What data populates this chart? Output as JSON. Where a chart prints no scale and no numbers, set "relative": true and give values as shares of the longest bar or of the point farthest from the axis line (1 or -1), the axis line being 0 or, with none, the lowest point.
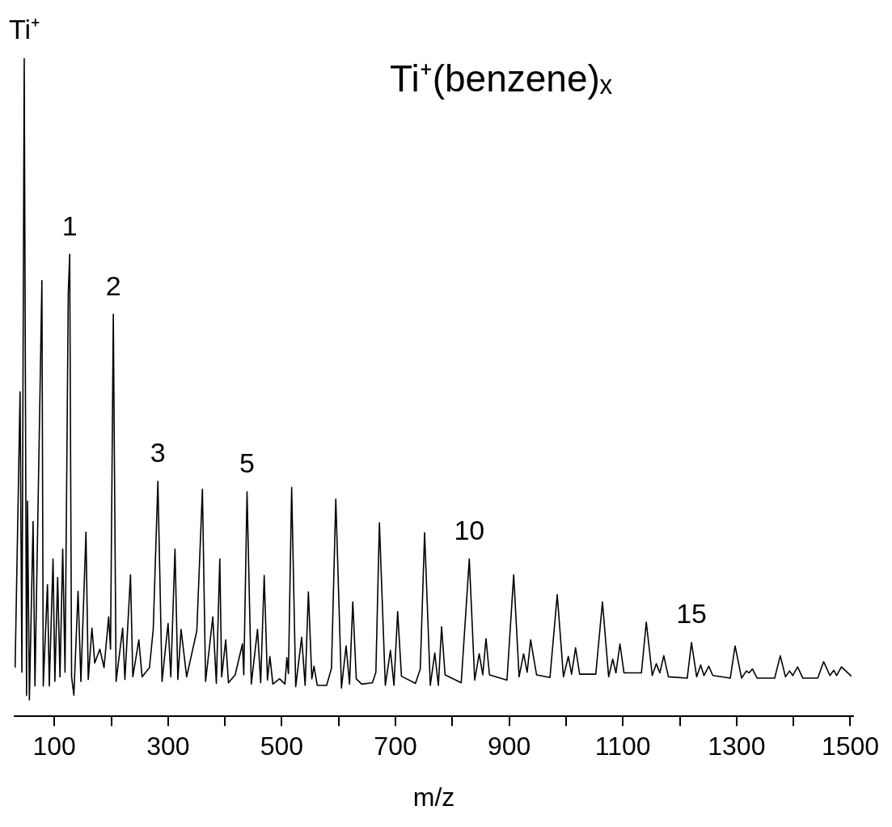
{
  "chart_data": {
    "type": "line",
    "title": "Ti⁺(benzene)ₓ",
    "xlabel": "m/z",
    "relative": true,
    "grid": false,
    "legend": false,
    "tick_labels": "x",
    "marker": "none",
    "line_style": "solid",
    "xlim": [
      30,
      1505
    ],
    "xticks": [
      100,
      {
        "value": 200,
        "label": null
      },
      300,
      {
        "value": 400,
        "label": null
      },
      500,
      {
        "value": 600,
        "label": null
      },
      700,
      {
        "value": 800,
        "label": null
      },
      900,
      {
        "value": 1000,
        "label": null
      },
      1100,
      {
        "value": 1200,
        "label": null
      },
      1300,
      {
        "value": 1400,
        "label": null
      },
      1500
    ],
    "annotations": [
      {
        "text": "Ti⁺",
        "x": 47,
        "y": 1
      },
      {
        "text": "1",
        "x": 127,
        "y": 0.702
      },
      {
        "text": "2",
        "x": 203.7,
        "y": 0.611
      },
      {
        "text": "3",
        "x": 282.1,
        "y": 0.357
      },
      {
        "text": "5",
        "x": 438.9,
        "y": 0.341
      },
      {
        "text": "10",
        "x": 829.8,
        "y": 0.239
      },
      {
        "text": "15",
        "x": 1220.6,
        "y": 0.112
      }
    ],
    "series": [
      {
        "color": "#000000",
        "x": [
          31,
          39.7,
          42.9,
          47.0,
          51.1,
          52.8,
          56.1,
          62.6,
          65.9,
          78.1,
          80.5,
          87.9,
          91.1,
          97.7,
          100.9,
          105.8,
          109.9,
          114.7,
          118.8,
          124.5,
          127.0,
          130.3,
          134.3,
          141.7,
          146.7,
          155.6,
          159.6,
          166.1,
          171.1,
          180.0,
          187.4,
          195.5,
          198.8,
          203.7,
          208.6,
          220.1,
          224.1,
          233.9,
          238.0,
          248.6,
          254.3,
          267.3,
          273.9,
          282.1,
          289.4,
          300.0,
          304.8,
          312.2,
          317.2,
          322.9,
          332.7,
          350.6,
          360.4,
          366.0,
          378.7,
          384.9,
          391.0,
          394.3,
          401.4,
          406.2,
          418.0,
          430.8,
          433.2,
          438.9,
          446.4,
          457.3,
          462.9,
          469.1,
          474.8,
          479.1,
          484.3,
          496.1,
          505.6,
          508.9,
          511.7,
          517.4,
          524.5,
          534.9,
          541.1,
          546.8,
          552.9,
          556.7,
          562.4,
          578.9,
          587.4,
          595.0,
          605.0,
          613.1,
          619.2,
          624.9,
          631.0,
          640.5,
          659.4,
          665.5,
          671.7,
          682.1,
          691.1,
          697.3,
          703.8,
          710.5,
          735.1,
          743.6,
          751.2,
          761.2,
          769.1,
          775.4,
          781.1,
          787.2,
          815.6,
          829.8,
          839.3,
          847.2,
          853.5,
          859.2,
          865.3,
          896.1,
          907.9,
          917.4,
          925.3,
          931.6,
          937.7,
          948.1,
          971.7,
          984.5,
          995.4,
          1004,
          1009.7,
          1016.7,
          1023.9,
          1052.3,
          1064,
          1074.9,
          1082.1,
          1087.7,
          1094.8,
          1101.9,
          1132.6,
          1141.1,
          1151.6,
          1158.7,
          1164.9,
          1171.9,
          1180.0,
          1213.1,
          1220.6,
          1229.7,
          1236.8,
          1242.5,
          1251,
          1258.1,
          1288.8,
          1297.3,
          1308.7,
          1317.2,
          1322.0,
          1327.7,
          1336.2,
          1366.9,
          1376.8,
          1385.9,
          1393,
          1398.7,
          1407.2,
          1416.6,
          1442.7,
          1453,
          1464.0,
          1471,
          1475.8,
          1484.3,
          1501.8
        ],
        "values": [
          0.074,
          0.493,
          0.067,
          1,
          0.032,
          0.327,
          0.025,
          0.296,
          0.046,
          0.662,
          0.046,
          0.2,
          0.046,
          0.239,
          0.053,
          0.211,
          0.06,
          0.254,
          0.067,
          0.644,
          0.702,
          0.06,
          0.032,
          0.19,
          0.053,
          0.28,
          0.056,
          0.134,
          0.081,
          0.102,
          0.074,
          0.151,
          0.102,
          0.611,
          0.053,
          0.134,
          0.056,
          0.215,
          0.06,
          0.116,
          0.06,
          0.074,
          0.132,
          0.357,
          0.053,
          0.141,
          0.06,
          0.254,
          0.056,
          0.132,
          0.06,
          0.13,
          0.345,
          0.053,
          0.151,
          0.05,
          0.239,
          0.06,
          0.116,
          0.051,
          0.063,
          0.11,
          0.063,
          0.341,
          0.049,
          0.132,
          0.051,
          0.214,
          0.055,
          0.091,
          0.049,
          0.057,
          0.049,
          0.089,
          0.065,
          0.348,
          0.045,
          0.12,
          0.047,
          0.189,
          0.057,
          0.076,
          0.047,
          0.047,
          0.073,
          0.33,
          0.043,
          0.107,
          0.049,
          0.174,
          0.057,
          0.049,
          0.051,
          0.067,
          0.294,
          0.047,
          0.1,
          0.047,
          0.159,
          0.061,
          0.05,
          0.072,
          0.279,
          0.047,
          0.096,
          0.047,
          0.136,
          0.063,
          0.051,
          0.239,
          0.055,
          0.095,
          0.063,
          0.118,
          0.063,
          0.055,
          0.215,
          0.06,
          0.095,
          0.067,
          0.116,
          0.063,
          0.059,
          0.185,
          0.06,
          0.091,
          0.064,
          0.104,
          0.064,
          0.064,
          0.174,
          0.06,
          0.087,
          0.066,
          0.11,
          0.066,
          0.066,
          0.143,
          0.062,
          0.08,
          0.066,
          0.092,
          0.06,
          0.058,
          0.112,
          0.06,
          0.078,
          0.062,
          0.076,
          0.062,
          0.058,
          0.107,
          0.058,
          0.069,
          0.066,
          0.072,
          0.058,
          0.058,
          0.092,
          0.06,
          0.069,
          0.062,
          0.075,
          0.058,
          0.058,
          0.083,
          0.062,
          0.07,
          0.062,
          0.075,
          0.061
        ]
      }
    ]
  }
}
